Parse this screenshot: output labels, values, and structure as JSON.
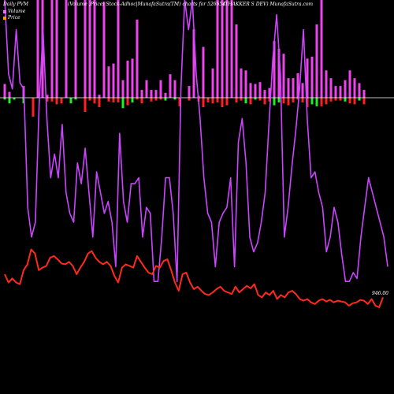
{
  "header": {
    "left": "Daily PVM",
    "center": "(Volume ,Price) Stock-Adhoc|MunafaSutra(TM) charts for 526654",
    "right": "(THAKKER          S DEV) MunafaSutra.com"
  },
  "legend": {
    "volume_label": "Volume",
    "price_label": "Price",
    "volume_color": "#ff66ff",
    "price_color": "#ff9900"
  },
  "last_price_label": "946.00",
  "colors": {
    "background": "#000000",
    "axis": "#ffffff",
    "volume_bar": "#ee44ee",
    "down_bar": "#ff2020",
    "up_bar": "#22ee22",
    "volume_line": "#cc44ff",
    "price_line": "#ff2a1a"
  },
  "chart_data": {
    "type": "line",
    "grid": false,
    "legend_position": "top-left",
    "volume_bars": [
      14,
      6,
      0,
      0,
      12,
      0,
      0,
      100,
      100,
      3,
      100,
      100,
      0,
      100,
      0,
      100,
      0,
      100,
      100,
      100,
      3,
      98,
      32,
      35,
      100,
      18,
      38,
      40,
      80,
      8,
      18,
      8,
      8,
      18,
      5,
      24,
      18,
      0,
      0,
      12,
      70,
      2,
      52,
      0,
      30,
      100,
      100,
      100,
      100,
      75,
      30,
      28,
      15,
      14,
      16,
      8,
      10,
      58,
      50,
      45,
      20,
      20,
      25,
      15,
      40,
      42,
      75,
      100,
      28,
      20,
      12,
      12,
      18,
      28,
      20,
      15,
      8
    ],
    "change_bars": [
      -4,
      -12,
      -4,
      0,
      -12,
      0,
      -40,
      0,
      0,
      -8,
      -8,
      -14,
      -12,
      0,
      -12,
      -4,
      0,
      -30,
      -6,
      -12,
      -20,
      0,
      -8,
      -10,
      -10,
      -22,
      -16,
      -10,
      -4,
      -12,
      0,
      -8,
      -6,
      -4,
      -6,
      0,
      -4,
      -18,
      0,
      -6,
      0,
      -8,
      -20,
      -10,
      -12,
      -10,
      -20,
      -16,
      0,
      -10,
      -6,
      -12,
      -14,
      -4,
      -6,
      -14,
      -8,
      -16,
      -10,
      -12,
      -16,
      -10,
      -4,
      -10,
      -20,
      -14,
      -18,
      -18,
      -14,
      -8,
      -6,
      -6,
      -8,
      -12,
      -14,
      -6,
      -14
    ],
    "change_colors": [
      "up",
      "up",
      "up",
      "up",
      "up",
      "down",
      "down",
      "down",
      "down",
      "down",
      "down",
      "down",
      "down",
      "up",
      "up",
      "up",
      "up",
      "down",
      "down",
      "down",
      "down",
      "down",
      "down",
      "down",
      "down",
      "up",
      "down",
      "up",
      "down",
      "down",
      "up",
      "down",
      "down",
      "down",
      "up",
      "down",
      "up",
      "down",
      "down",
      "down",
      "down",
      "down",
      "down",
      "down",
      "down",
      "down",
      "down",
      "down",
      "up",
      "down",
      "down",
      "up",
      "down",
      "up",
      "down",
      "down",
      "down",
      "up",
      "up",
      "down",
      "down",
      "down",
      "down",
      "down",
      "down",
      "up",
      "up",
      "down",
      "down",
      "down",
      "down",
      "down",
      "up",
      "down",
      "down",
      "up",
      "down"
    ],
    "volume_line": [
      100,
      75,
      70,
      90,
      72,
      70,
      30,
      20,
      25,
      65,
      90,
      60,
      40,
      48,
      40,
      58,
      35,
      28,
      25,
      45,
      38,
      50,
      35,
      20,
      42,
      35,
      28,
      32,
      25,
      10,
      55,
      32,
      25,
      38,
      38,
      40,
      20,
      30,
      28,
      5,
      5,
      20,
      40,
      40,
      28,
      5,
      70,
      100,
      90,
      100,
      75,
      60,
      40,
      28,
      25,
      10,
      25,
      28,
      30,
      40,
      10,
      52,
      60,
      45,
      20,
      15,
      18,
      25,
      35,
      58,
      80,
      95,
      75,
      20,
      30,
      44,
      56,
      70,
      90,
      60,
      40,
      42,
      35,
      30,
      15,
      20,
      30,
      25,
      14,
      5,
      5,
      8,
      6,
      20,
      30,
      40,
      35,
      30,
      25,
      20,
      10
    ],
    "price_line": [
      40,
      30,
      35,
      30,
      28,
      45,
      52,
      70,
      65,
      45,
      48,
      50,
      60,
      62,
      58,
      53,
      52,
      55,
      50,
      40,
      48,
      55,
      65,
      68,
      60,
      55,
      52,
      55,
      50,
      38,
      30,
      48,
      52,
      50,
      48,
      62,
      55,
      48,
      42,
      40,
      50,
      48,
      56,
      58,
      45,
      30,
      20,
      40,
      42,
      30,
      22,
      25,
      20,
      16,
      15,
      18,
      22,
      25,
      20,
      18,
      16,
      25,
      18,
      22,
      26,
      23,
      28,
      15,
      12,
      18,
      15,
      20,
      10,
      15,
      12,
      18,
      20,
      16,
      10,
      8,
      10,
      6,
      4,
      8,
      10,
      7,
      9,
      6,
      8,
      7,
      6,
      2,
      5,
      6,
      9,
      8,
      4,
      10,
      2,
      0,
      12
    ]
  }
}
